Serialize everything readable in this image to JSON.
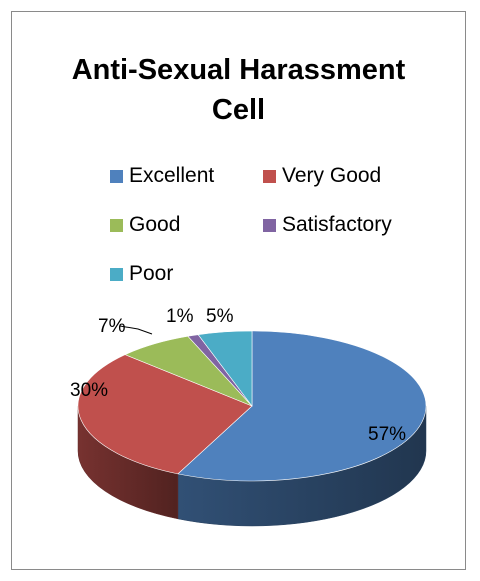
{
  "chart_data": {
    "type": "pie",
    "title": "Anti-Sexual Harassment Cell",
    "title_lines": [
      "Anti-Sexual Harassment",
      "Cell"
    ],
    "categories": [
      "Excellent",
      "Very Good",
      "Good",
      "Satisfactory",
      "Poor"
    ],
    "values": [
      57,
      30,
      7,
      1,
      5
    ],
    "labels": [
      "57%",
      "30%",
      "7%",
      "1%",
      "5%"
    ],
    "colors": [
      "#4f81bd",
      "#c0504d",
      "#9bbb59",
      "#8064a2",
      "#4bacc6"
    ],
    "legend_position": "top",
    "style": "3d"
  }
}
